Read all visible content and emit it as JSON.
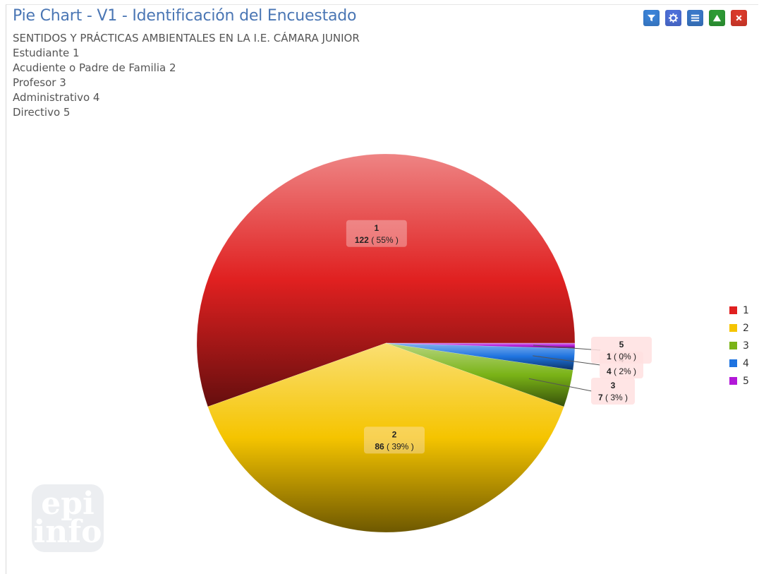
{
  "header": {
    "title": "Pie Chart - V1 - Identificación del Encuestado",
    "subtitle_lines": [
      "SENTIDOS Y PRÁCTICAS AMBIENTALES EN LA I.E. CÁMARA JUNIOR",
      "Estudiante 1",
      "Acudiente o Padre de Familia 2",
      "Profesor 3",
      "Administrativo 4",
      "Directivo 5"
    ]
  },
  "toolbar": {
    "buttons": [
      {
        "name": "filter-button",
        "icon": "filter-icon",
        "color": "#3b82d6"
      },
      {
        "name": "settings-button",
        "icon": "gear-icon",
        "color": "#4d6fd8"
      },
      {
        "name": "menu-button",
        "icon": "list-icon",
        "color": "#3a78c8"
      },
      {
        "name": "collapse-button",
        "icon": "triangle-up-icon",
        "color": "#2e9a35"
      },
      {
        "name": "close-button",
        "icon": "close-icon",
        "color": "#d93a2b"
      }
    ]
  },
  "watermark": {
    "line1": "epi",
    "line2": "info"
  },
  "chart_data": {
    "type": "pie",
    "categories": [
      "1",
      "2",
      "3",
      "4",
      "5"
    ],
    "values": [
      122,
      86,
      7,
      4,
      1
    ],
    "percent_labels": [
      "55%",
      "39%",
      "3%",
      "2%",
      "0%"
    ],
    "colors": [
      "#e02020",
      "#f5c400",
      "#7ab317",
      "#1e73e0",
      "#b218d8"
    ],
    "legend": {
      "placement": "right",
      "entries": [
        "1",
        "2",
        "3",
        "4",
        "5"
      ]
    }
  }
}
